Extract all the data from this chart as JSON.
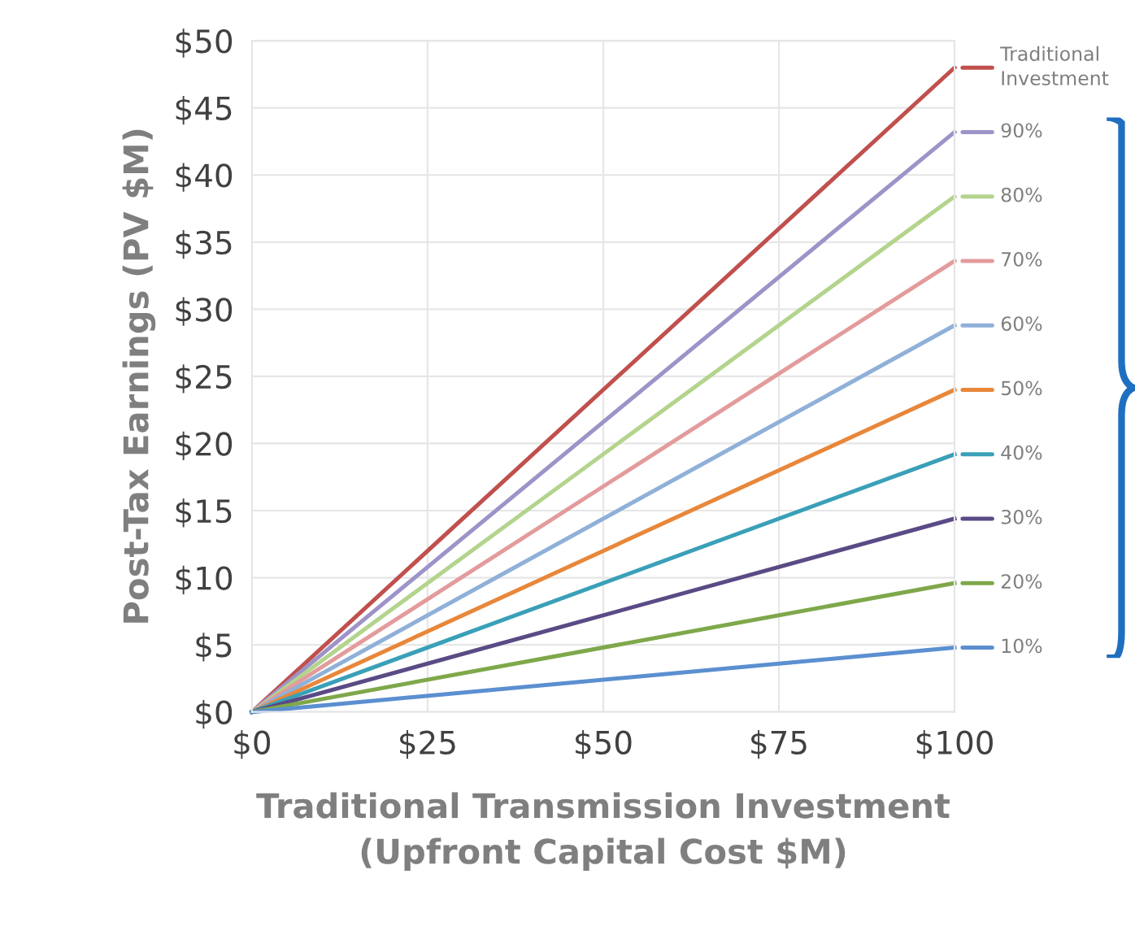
{
  "chart_data": {
    "type": "line",
    "xlabel": "Traditional Transmission Investment\n(Upfront Capital Cost $M)",
    "ylabel": "Post-Tax Earnings (PV $M)",
    "x": [
      0,
      100
    ],
    "xlim": [
      0,
      100
    ],
    "xticks": [
      {
        "value": 0,
        "label": "$0"
      },
      {
        "value": 25,
        "label": "$25"
      },
      {
        "value": 50,
        "label": "$50"
      },
      {
        "value": 75,
        "label": "$75"
      },
      {
        "value": 100,
        "label": "$100"
      }
    ],
    "ylim": [
      0,
      50
    ],
    "yticks": [
      {
        "value": 0,
        "label": "$0"
      },
      {
        "value": 5,
        "label": "$5"
      },
      {
        "value": 10,
        "label": "$10"
      },
      {
        "value": 15,
        "label": "$15"
      },
      {
        "value": 20,
        "label": "$20"
      },
      {
        "value": 25,
        "label": "$25"
      },
      {
        "value": 30,
        "label": "$30"
      },
      {
        "value": 35,
        "label": "$35"
      },
      {
        "value": 40,
        "label": "$40"
      },
      {
        "value": 45,
        "label": "$45"
      },
      {
        "value": 50,
        "label": "$50"
      }
    ],
    "grid": true,
    "legend": "right",
    "marker": "none",
    "line_style": "solid",
    "series": [
      {
        "name": "Traditional\nInvestment",
        "color": "#c0504d",
        "values": [
          0,
          48
        ]
      },
      {
        "name": "90%",
        "color": "#9e93c8",
        "values": [
          0,
          43.2
        ]
      },
      {
        "name": "80%",
        "color": "#b3d48c",
        "values": [
          0,
          38.4
        ]
      },
      {
        "name": "70%",
        "color": "#e39b9b",
        "values": [
          0,
          33.6
        ]
      },
      {
        "name": "60%",
        "color": "#8fb0d8",
        "values": [
          0,
          28.8
        ]
      },
      {
        "name": "50%",
        "color": "#e8873a",
        "values": [
          0,
          24
        ]
      },
      {
        "name": "40%",
        "color": "#3aa0b8",
        "values": [
          0,
          19.2
        ]
      },
      {
        "name": "30%",
        "color": "#5a4a85",
        "values": [
          0,
          14.4
        ]
      },
      {
        "name": "20%",
        "color": "#7ea84a",
        "values": [
          0,
          9.6
        ]
      },
      {
        "name": "10%",
        "color": "#5b8fd0",
        "values": [
          0,
          4.8
        ]
      }
    ]
  }
}
